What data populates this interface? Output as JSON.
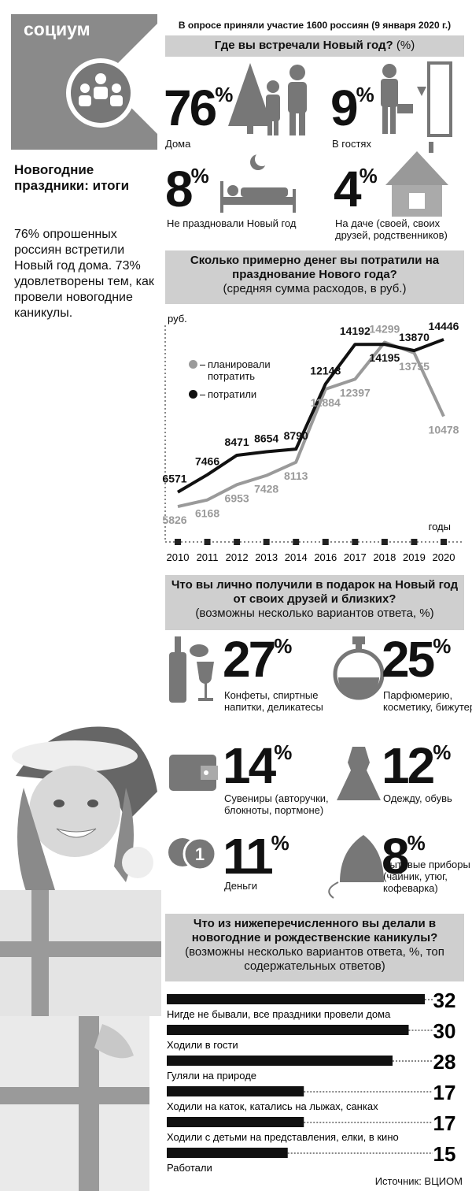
{
  "header": {
    "brand": "социум",
    "title": "Новогодние праздники: итоги",
    "lead": "76% опрошенных россиян встретили Новый год дома. 73% удовлетворены тем, как провели новогодние каникулы."
  },
  "survey_note": "В опросе приняли участие 1600 россиян (9 января 2020 г.)",
  "percent_sign": "%",
  "where_met": {
    "title": "Где вы встречали Новый год?",
    "unit": "(%)",
    "items": [
      {
        "value": 76,
        "label": "Дома"
      },
      {
        "value": 9,
        "label": "В гостях"
      },
      {
        "value": 8,
        "label": "Не праздновали Новый год"
      },
      {
        "value": 4,
        "label": "На даче (своей, своих друзей, родственников)"
      }
    ]
  },
  "chart_data": [
    {
      "type": "line",
      "title": "Сколько примерно денег вы потратили на празднование Нового года?",
      "subtitle": "(средняя сумма расходов, в руб.)",
      "y_label": "руб.",
      "x_label": "годы",
      "categories": [
        "2010",
        "2011",
        "2012",
        "2013",
        "2014",
        "2016",
        "2017",
        "2018",
        "2019",
        "2020"
      ],
      "ylim": [
        4000,
        15500
      ],
      "data_labels": true,
      "legend": "upper-left",
      "series": [
        {
          "name": "планировали потратить",
          "color": "#9a9a9a",
          "values": [
            5826,
            6168,
            6953,
            7428,
            8113,
            11884,
            12397,
            14299,
            13755,
            10478
          ]
        },
        {
          "name": "потратили",
          "color": "#111111",
          "values": [
            6571,
            7466,
            8471,
            8654,
            8790,
            12148,
            14192,
            14195,
            13870,
            14446
          ]
        }
      ]
    },
    {
      "type": "bar",
      "orientation": "horizontal",
      "title": "Что из нижеперечисленного вы делали в новогодние и рождественские каникулы?",
      "subtitle": "(возможны несколько вариантов ответа, %, топ содержательных ответов)",
      "categories": [
        "Нигде не бывали, все праздники провели дома",
        "Ходили в гости",
        "Гуляли на природе",
        "Ходили на каток, катались на лыжах, санках",
        "Ходили с детьми на представления, елки, в кино",
        "Работали"
      ],
      "values": [
        32,
        30,
        28,
        17,
        17,
        15
      ],
      "color": "#111111",
      "xlim": [
        0,
        32
      ]
    }
  ],
  "gifts": {
    "title": "Что вы лично получили в подарок на Новый год от своих друзей и близких?",
    "subtitle": "(возможны несколько вариантов ответа, %)",
    "items": [
      {
        "value": 27,
        "label": "Конфеты, спиртные напитки, деликатесы"
      },
      {
        "value": 25,
        "label": "Парфюмерию, косметику, бижутерию"
      },
      {
        "value": 14,
        "label": "Сувениры (авторучки, блокноты, портмоне)"
      },
      {
        "value": 12,
        "label": "Одежду, обувь"
      },
      {
        "value": 11,
        "label": "Деньги"
      },
      {
        "value": 8,
        "label": "Бытовые приборы (чайник, утюг, кофеварка)"
      }
    ]
  },
  "source": "Источник: ВЦИОМ"
}
